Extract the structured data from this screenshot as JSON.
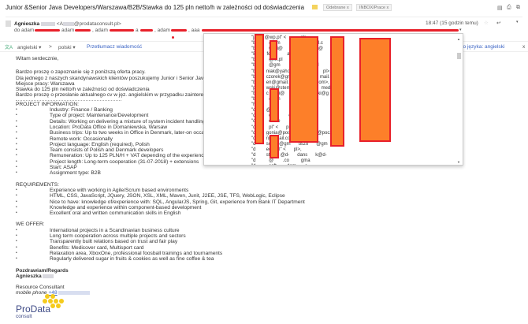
{
  "header": {
    "subject": "Junior &Senior Java Developers/Warszawa/B2B/Stawka do 125 pln netto/h w zależności od doświadczenia",
    "labels": [
      "Odebrane",
      "INBOX/Prace"
    ],
    "label_close": "x",
    "icons": [
      "expand-icon",
      "print-icon",
      "new-window-icon"
    ]
  },
  "message": {
    "sender_name": "Agnieszka",
    "sender_email_prefix": "<A",
    "sender_email_domain": "@prodataconsult.pl>",
    "to_prefix": "do adam",
    "recipients": [
      "adam",
      ", adam",
      "a",
      ", adam",
      ", aaa"
    ],
    "timestamp": "18:47 (15 godzin temu)"
  },
  "translate": {
    "from_lang": "angielski ▾",
    "arrow": ">",
    "to_lang": "polski ▾",
    "translate_link": "Przetłumacz wiadomość",
    "disable_text": "jącego języka: angielski",
    "close": "x"
  },
  "recipient_popup": {
    "lines": [
      "\"ja      @wp.pl\" <           pl>,",
      "\"b          @gm          born      mail.c",
      "\"b          wski@        artel     wski@",
      "\"B        fel@        arto      fel@g",
      "\"b          @m.pl         .pr",
      "\"b          @gm       ospo      gmail",
      "\"b        niak@yaho          niak@     pl>,",
      "\"b        czorek@gma        ecz      mail.co",
      "\"b        en@gmail.        en@       om>,",
      "\"p        wski@sterm        ewsk      media",
      "\"b        c      ki@        orys      wski@g",
      "\"b          @gm         ys      @gma",
      "\"h           com             mail",
      "\"d        @gm         niel      @gm",
      "\"d          ch\"          ch",
      "\"d          es.co          ezk",
      "\"d          pl\" <      pl>,",
      "\"d        gonia@pocz      atus      @pocz",
      "\"d        r@gmail.co        gma",
      "\"d        so      @gm      uszo      @gm",
      "\"d        ec      l\" <      pl>,",
      "\"d        st        @d-      dans      k@d-",
      "\"d          @       .co         gma",
      "\"d          soft        dom       >,"
    ]
  },
  "body": {
    "greeting": "Witam serdecznie,",
    "intro": [
      "Bardzo proszę o zapoznanie się z poniższą oferta pracy.",
      "Dla jednego  z naszych skandynawskich klientów poszukujemy Junior i Senior Java Develo",
      "Miejsce pracy: Warszawa",
      "Stawka do 125 pln netto/h w zależności od doświadczenia",
      "Bardzo proszę o przesłanie aktualnego cv w jęz. angielskim w przypadku zainteresowania"
    ],
    "project_heading": "PROJECT INFORMATION:",
    "project_items": [
      "Industry: Finance / Banking",
      "Type of project: Maintenance/Development",
      "Details:  Working on delivering a mixture of system incident handling and new d",
      "Location: ProData Office in Domaniewska, Warsaw",
      "Business trips: Up to two weeks in Office in Denmark, later-on occasional trips",
      "Remote work: Occasionally",
      "Project language: English (required), Polish",
      "Team consists of Polish and Denmark developers",
      "Remuneration:  Up to 125 PLN/H + VAT depending of the experience",
      "Project length: Long-term cooperation (31-07-2018) + extensions",
      "Start: ASAP",
      "Assignment type: B2B"
    ],
    "requirements_heading": "REQUIREMENTS:",
    "requirements_items": [
      "Experience with working in Agile/Scrum based environments",
      "HTML, CSS, JavaScript, JQuery, JSON, XSL, XML, Maven, Junit, J2EE, JSE, TFS, WebLogic, Eclipse",
      "Nice to have: knowledge of/experience with: SQL, AngularJS, Spring, Git, experience from Bank IT Department",
      "Knowledge and experience within component-based development",
      "Excellent oral and written communication skills in English"
    ],
    "offer_heading": "WE OFFER:",
    "offer_items": [
      "International projects in a Scandinavian business culture",
      "Long term cooperation across multiple projects and sectors",
      "Transparently built relations based on trust and fair play",
      "Benefits: Medicover card, Multisport card",
      "Relaxation area, XboxOne, professional foosball trainings and tournaments",
      "Regularly delivered sugar in fruits & cookies as well as fine coffee & tea"
    ],
    "regards": "Pozdrawiam/Regards",
    "signature_name": "Agnieszka",
    "role": "Resource Consultant",
    "phone_label": "mobile phone",
    "phone_prefix": "+48",
    "logo_text": "ProData",
    "logo_sub": "consult"
  },
  "colors": {
    "redaction_fill": "#fd7f29",
    "redaction_border": "#e8202a",
    "logo_yellow": "#f5cb1c",
    "link": "#3a63c4"
  }
}
